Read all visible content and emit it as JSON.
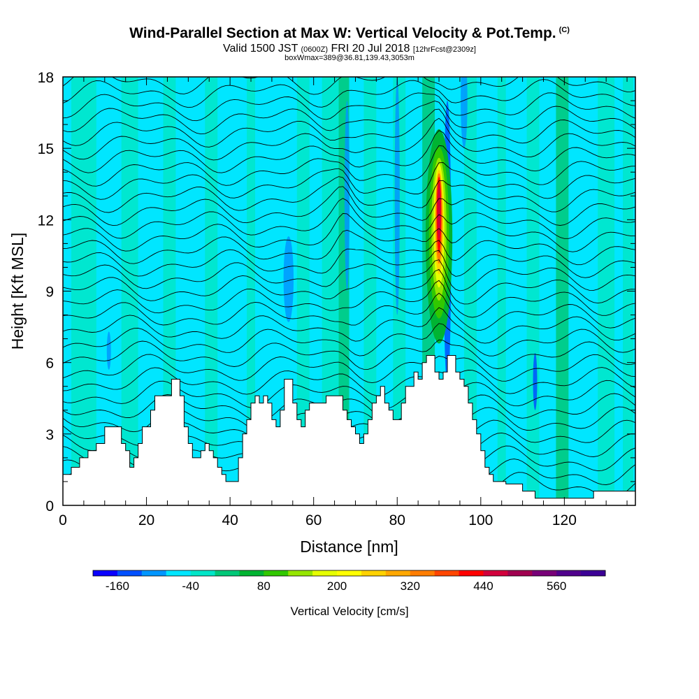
{
  "title": {
    "main": "Wind-Parallel Section at Max W: Vertical Velocity & Pot.Temp.",
    "copyright": "(C)",
    "valid_prefix": "Valid 1500 JST",
    "valid_utc": "(0600Z)",
    "valid_date": "FRI 20 Jul 2018",
    "forecast": "[12hrFcst@2309z]",
    "box_info": "boxWmax=389@36.81,139.43,3053m"
  },
  "chart_data": {
    "type": "heatmap",
    "xlabel": "Distance [nm]",
    "ylabel": "Height [Kft MSL]",
    "xlim": [
      0,
      137
    ],
    "ylim": [
      0,
      18
    ],
    "x_ticks": [
      0,
      20,
      40,
      60,
      80,
      100,
      120
    ],
    "y_ticks": [
      0,
      3,
      6,
      9,
      12,
      15,
      18
    ],
    "colorbar": {
      "label": "Vertical Velocity [cm/s]",
      "min": -200,
      "max": 640,
      "step": 40,
      "tick_labels": [
        -160,
        -40,
        80,
        200,
        320,
        440,
        560
      ],
      "colors": [
        "#0a00ff",
        "#0050ff",
        "#0096ff",
        "#00e6ff",
        "#00e6c8",
        "#00c878",
        "#00b432",
        "#32c800",
        "#96e600",
        "#e6ff00",
        "#ffff00",
        "#ffd200",
        "#ffa800",
        "#ff7d00",
        "#ff4600",
        "#ff0000",
        "#d2003c",
        "#a00050",
        "#780078",
        "#50008c",
        "#3c0096"
      ]
    },
    "terrain_profile_kft": [
      [
        0,
        1.3
      ],
      [
        2,
        1.6
      ],
      [
        4,
        2.0
      ],
      [
        6,
        2.3
      ],
      [
        8,
        2.6
      ],
      [
        10,
        3.3
      ],
      [
        13,
        3.3
      ],
      [
        14,
        2.6
      ],
      [
        15,
        2.3
      ],
      [
        16,
        1.6
      ],
      [
        17,
        2.0
      ],
      [
        18,
        2.6
      ],
      [
        19,
        3.3
      ],
      [
        21,
        4.0
      ],
      [
        22,
        4.6
      ],
      [
        25,
        4.6
      ],
      [
        26,
        5.3
      ],
      [
        27,
        5.3
      ],
      [
        28,
        4.6
      ],
      [
        29,
        3.3
      ],
      [
        30,
        2.6
      ],
      [
        31,
        2.0
      ],
      [
        32,
        2.0
      ],
      [
        33,
        2.3
      ],
      [
        34,
        2.6
      ],
      [
        35,
        2.3
      ],
      [
        36,
        2.0
      ],
      [
        37,
        1.6
      ],
      [
        38,
        1.3
      ],
      [
        39,
        1.0
      ],
      [
        41,
        1.0
      ],
      [
        42,
        2.0
      ],
      [
        43,
        3.0
      ],
      [
        44,
        3.6
      ],
      [
        45,
        4.3
      ],
      [
        46,
        4.6
      ],
      [
        47,
        4.3
      ],
      [
        48,
        4.6
      ],
      [
        49,
        4.3
      ],
      [
        50,
        3.6
      ],
      [
        51,
        3.3
      ],
      [
        52,
        4.0
      ],
      [
        53,
        5.3
      ],
      [
        54,
        5.3
      ],
      [
        55,
        4.3
      ],
      [
        56,
        3.6
      ],
      [
        57,
        3.3
      ],
      [
        58,
        4.0
      ],
      [
        59,
        4.3
      ],
      [
        62,
        4.3
      ],
      [
        63,
        4.6
      ],
      [
        66,
        4.6
      ],
      [
        67,
        4.0
      ],
      [
        68,
        3.6
      ],
      [
        69,
        3.3
      ],
      [
        70,
        3.0
      ],
      [
        71,
        2.6
      ],
      [
        72,
        3.0
      ],
      [
        73,
        3.6
      ],
      [
        74,
        4.3
      ],
      [
        75,
        4.6
      ],
      [
        76,
        5.0
      ],
      [
        77,
        4.3
      ],
      [
        78,
        4.0
      ],
      [
        79,
        3.6
      ],
      [
        80,
        3.6
      ],
      [
        81,
        4.3
      ],
      [
        82,
        5.0
      ],
      [
        83,
        5.0
      ],
      [
        84,
        5.6
      ],
      [
        85,
        5.3
      ],
      [
        86,
        6.0
      ],
      [
        87,
        6.3
      ],
      [
        88,
        6.3
      ],
      [
        89,
        5.6
      ],
      [
        90,
        5.3
      ],
      [
        91,
        5.6
      ],
      [
        92,
        6.3
      ],
      [
        93,
        6.3
      ],
      [
        94,
        5.6
      ],
      [
        95,
        5.3
      ],
      [
        96,
        5.0
      ],
      [
        97,
        4.3
      ],
      [
        98,
        3.6
      ],
      [
        99,
        3.0
      ],
      [
        100,
        2.3
      ],
      [
        101,
        1.6
      ],
      [
        102,
        1.3
      ],
      [
        103,
        1.0
      ],
      [
        104,
        1.0
      ],
      [
        106,
        0.9
      ],
      [
        108,
        0.9
      ],
      [
        110,
        0.6
      ],
      [
        112,
        0.6
      ],
      [
        113,
        0.3
      ],
      [
        118,
        0.3
      ],
      [
        126,
        0.3
      ],
      [
        127,
        0.6
      ],
      [
        137,
        0.6
      ]
    ],
    "max_updraft": {
      "x_nm": 90,
      "height_kft": 12.5,
      "value_cms": 389
    }
  }
}
